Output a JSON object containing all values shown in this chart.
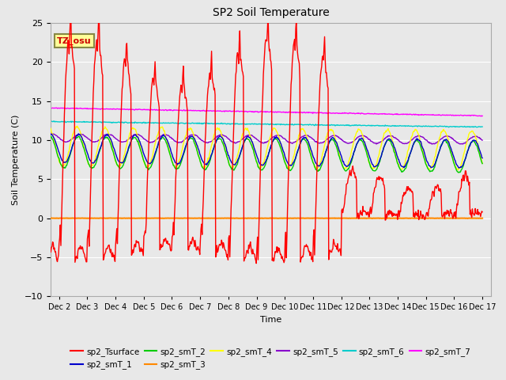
{
  "title": "SP2 Soil Temperature",
  "ylabel": "Soil Temperature (C)",
  "xlabel": "Time",
  "annotation": "TZ_osu",
  "ylim": [
    -10,
    25
  ],
  "fig_facecolor": "#e8e8e8",
  "ax_facecolor": "#e8e8e8",
  "colors": {
    "sp2_Tsurface": "#ff0000",
    "sp2_smT_1": "#0000cc",
    "sp2_smT_2": "#00cc00",
    "sp2_smT_3": "#ff8800",
    "sp2_smT_4": "#ffff00",
    "sp2_smT_5": "#8800cc",
    "sp2_smT_6": "#00cccc",
    "sp2_smT_7": "#ff00ff"
  },
  "n_points": 768,
  "n_days": 16
}
